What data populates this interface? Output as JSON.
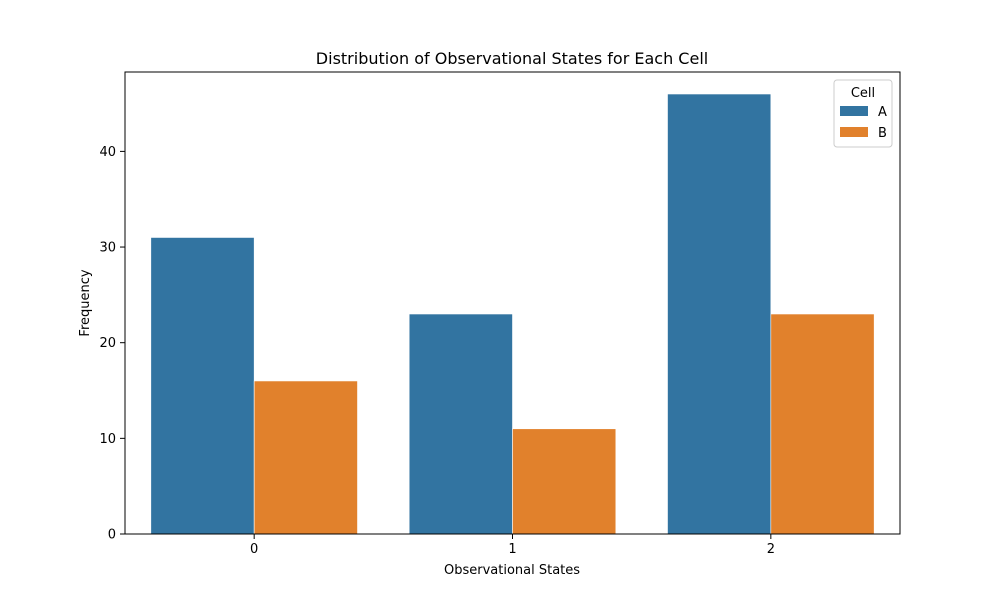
{
  "chart_data": {
    "type": "bar",
    "title": "Distribution of Observational States for Each Cell",
    "xlabel": "Observational States",
    "ylabel": "Frequency",
    "categories": [
      "0",
      "1",
      "2"
    ],
    "series": [
      {
        "name": "A",
        "values": [
          31,
          23,
          46
        ],
        "color": "#3274a1"
      },
      {
        "name": "B",
        "values": [
          16,
          11,
          23
        ],
        "color": "#e1812c"
      }
    ],
    "ylim": [
      0,
      48.3
    ],
    "yticks": [
      0,
      10,
      20,
      30,
      40
    ],
    "legend": {
      "title": "Cell",
      "placement": "top-right"
    },
    "grid": false
  }
}
